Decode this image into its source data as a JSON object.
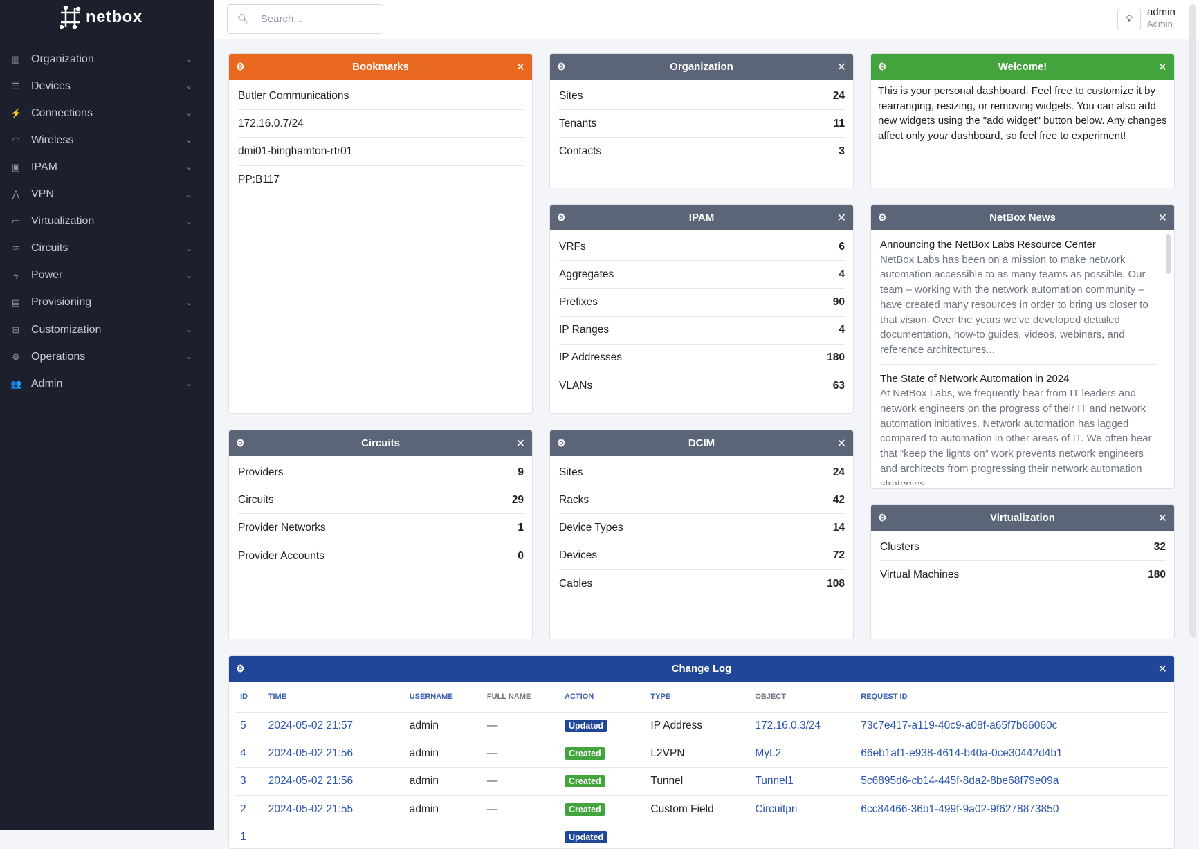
{
  "app": {
    "name": "netbox"
  },
  "sidebar": {
    "items": [
      {
        "label": "Organization",
        "icon": "building-icon",
        "glyph": "▥"
      },
      {
        "label": "Devices",
        "icon": "server-icon",
        "glyph": "☰"
      },
      {
        "label": "Connections",
        "icon": "plug-icon",
        "glyph": "⚡"
      },
      {
        "label": "Wireless",
        "icon": "wifi-icon",
        "glyph": "◠"
      },
      {
        "label": "IPAM",
        "icon": "ip-network-icon",
        "glyph": "▣"
      },
      {
        "label": "VPN",
        "icon": "tunnel-icon",
        "glyph": "⋀"
      },
      {
        "label": "Virtualization",
        "icon": "monitor-icon",
        "glyph": "▭"
      },
      {
        "label": "Circuits",
        "icon": "transit-connection-icon",
        "glyph": "≋"
      },
      {
        "label": "Power",
        "icon": "flash-icon",
        "glyph": "ϟ"
      },
      {
        "label": "Provisioning",
        "icon": "file-document-icon",
        "glyph": "▤"
      },
      {
        "label": "Customization",
        "icon": "toolbox-icon",
        "glyph": "⊟"
      },
      {
        "label": "Operations",
        "icon": "cogs-icon",
        "glyph": "⚙"
      },
      {
        "label": "Admin",
        "icon": "account-group-icon",
        "glyph": "👥"
      }
    ]
  },
  "header": {
    "search_placeholder": "Search...",
    "user_name": "admin",
    "user_role": "Admin"
  },
  "colors": {
    "orange": "#e8681f",
    "gray": "#5b6577",
    "green": "#43a33c",
    "blue": "#1f4697",
    "updated": "#1f4697",
    "created": "#43a33c"
  },
  "widgets": {
    "bookmarks": {
      "title": "Bookmarks",
      "items": [
        "Butler Communications",
        "172.16.0.7/24",
        "dmi01-binghamton-rtr01",
        "PP:B117"
      ]
    },
    "organization": {
      "title": "Organization",
      "rows": [
        [
          "Sites",
          "24"
        ],
        [
          "Tenants",
          "11"
        ],
        [
          "Contacts",
          "3"
        ]
      ]
    },
    "welcome": {
      "title": "Welcome!",
      "text_1": "This is your personal dashboard. Feel free to customize it by rearranging, resizing, or removing widgets. You can also add new widgets using the \"add widget\" button below. Any changes affect only ",
      "text_em": "your",
      "text_2": " dashboard, so feel free to experiment!"
    },
    "ipam": {
      "title": "IPAM",
      "rows": [
        [
          "VRFs",
          "6"
        ],
        [
          "Aggregates",
          "4"
        ],
        [
          "Prefixes",
          "90"
        ],
        [
          "IP Ranges",
          "4"
        ],
        [
          "IP Addresses",
          "180"
        ],
        [
          "VLANs",
          "63"
        ]
      ]
    },
    "news": {
      "title": "NetBox News",
      "items": [
        {
          "title": "Announcing the NetBox Labs Resource Center",
          "summary": "NetBox Labs has been on a mission to make network automation accessible to as many teams as possible. Our team – working with the network automation community – have created many resources in order to bring us closer to that vision. Over the years we’ve developed detailed documentation, how-to guides, videos, webinars, and reference architectures..."
        },
        {
          "title": "The State of Network Automation in 2024",
          "summary": "At NetBox Labs, we frequently hear from IT leaders and network engineers on the progress of their IT and network automation initiatives. Network automation has lagged compared to automation in other areas of IT. We often hear that “keep the lights on” work prevents network engineers and architects from progressing their network automation strategies."
        }
      ]
    },
    "circuits": {
      "title": "Circuits",
      "rows": [
        [
          "Providers",
          "9"
        ],
        [
          "Circuits",
          "29"
        ],
        [
          "Provider Networks",
          "1"
        ],
        [
          "Provider Accounts",
          "0"
        ]
      ]
    },
    "dcim": {
      "title": "DCIM",
      "rows": [
        [
          "Sites",
          "24"
        ],
        [
          "Racks",
          "42"
        ],
        [
          "Device Types",
          "14"
        ],
        [
          "Devices",
          "72"
        ],
        [
          "Cables",
          "108"
        ]
      ]
    },
    "virtualization": {
      "title": "Virtualization",
      "rows": [
        [
          "Clusters",
          "32"
        ],
        [
          "Virtual Machines",
          "180"
        ]
      ]
    },
    "changelog": {
      "title": "Change Log",
      "columns": [
        "ID",
        "TIME",
        "USERNAME",
        "FULL NAME",
        "ACTION",
        "TYPE",
        "OBJECT",
        "REQUEST ID"
      ],
      "rows": [
        [
          "5",
          "2024-05-02 21:57",
          "admin",
          "—",
          "Updated",
          "IP Address",
          "172.16.0.3/24",
          "73c7e417-a119-40c9-a08f-a65f7b66060c"
        ],
        [
          "4",
          "2024-05-02 21:56",
          "admin",
          "—",
          "Created",
          "L2VPN",
          "MyL2",
          "66eb1af1-e938-4614-b40a-0ce30442d4b1"
        ],
        [
          "3",
          "2024-05-02 21:56",
          "admin",
          "—",
          "Created",
          "Tunnel",
          "Tunnel1",
          "5c6895d6-cb14-445f-8da2-8be68f79e09a"
        ],
        [
          "2",
          "2024-05-02 21:55",
          "admin",
          "—",
          "Created",
          "Custom Field",
          "Circuitpri",
          "6cc84466-36b1-499f-9a02-9f6278873850"
        ],
        [
          "1",
          "",
          "",
          "",
          "Updated",
          "",
          "",
          ""
        ]
      ]
    }
  }
}
